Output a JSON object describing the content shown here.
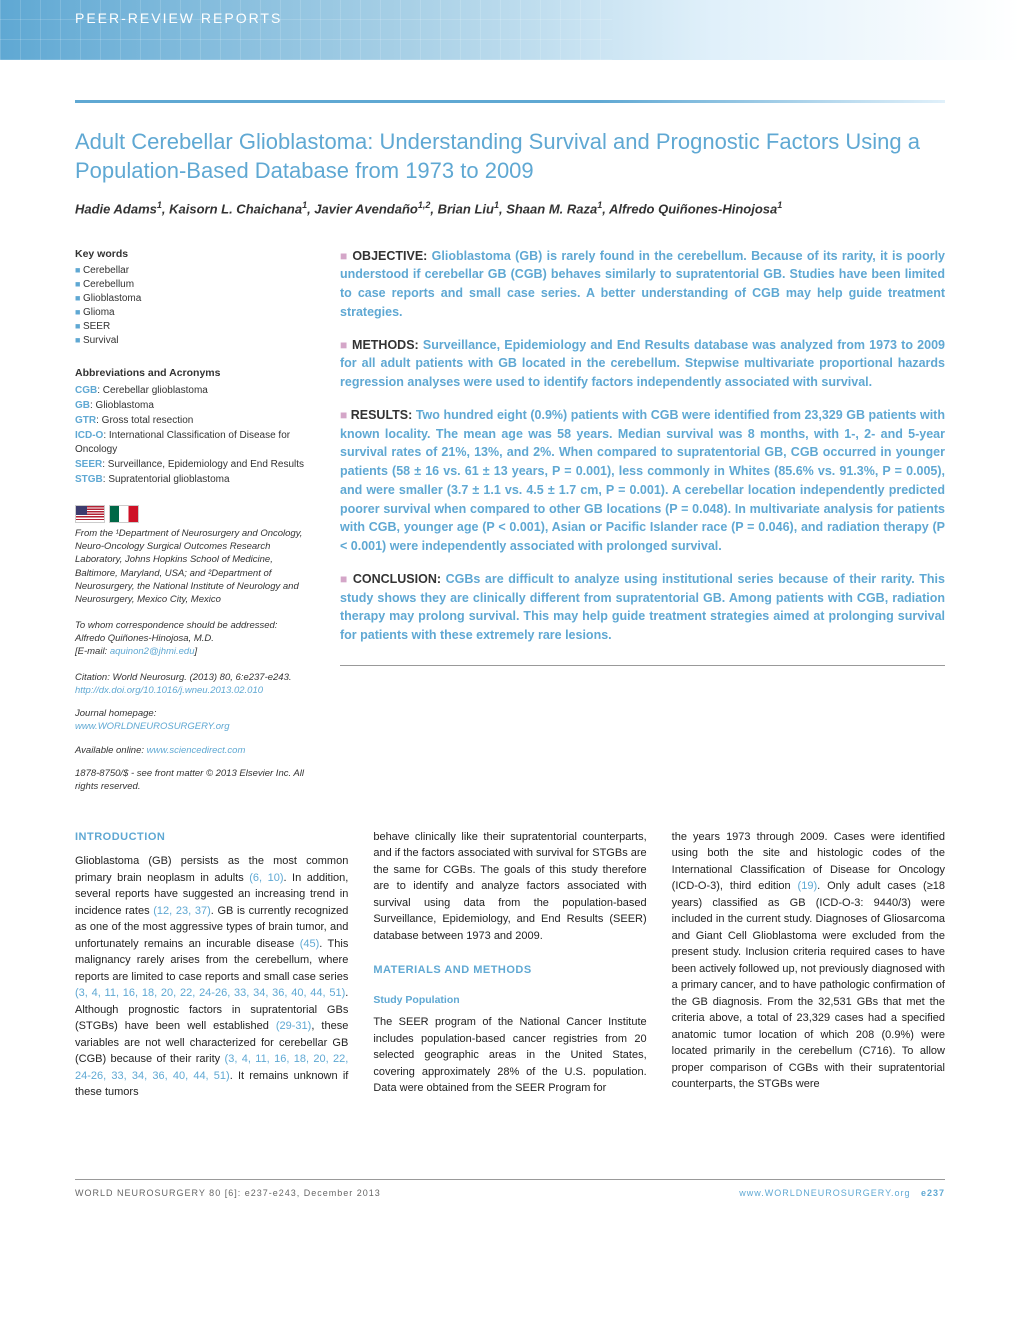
{
  "header": {
    "label": "Peer-Review Reports"
  },
  "title": "Adult Cerebellar Glioblastoma: Understanding Survival and Prognostic Factors Using a Population-Based Database from 1973 to 2009",
  "authors_html": "Hadie Adams<sup>1</sup>, Kaisorn L. Chaichana<sup>1</sup>, Javier Avendaño<sup>1,2</sup>, Brian Liu<sup>1</sup>, Shaan M. Raza<sup>1</sup>, Alfredo Quiñones-Hinojosa<sup>1</sup>",
  "keywords": [
    "Cerebellar",
    "Cerebellum",
    "Glioblastoma",
    "Glioma",
    "SEER",
    "Survival"
  ],
  "abbreviations": [
    {
      "abbr": "CGB",
      "desc": "Cerebellar glioblastoma"
    },
    {
      "abbr": "GB",
      "desc": "Glioblastoma"
    },
    {
      "abbr": "GTR",
      "desc": "Gross total resection"
    },
    {
      "abbr": "ICD-O",
      "desc": "International Classification of Disease for Oncology"
    },
    {
      "abbr": "SEER",
      "desc": "Surveillance, Epidemiology and End Results"
    },
    {
      "abbr": "STGB",
      "desc": "Supratentorial glioblastoma"
    }
  ],
  "affiliation": "From the ¹Department of Neurosurgery and Oncology, Neuro-Oncology Surgical Outcomes Research Laboratory, Johns Hopkins School of Medicine, Baltimore, Maryland, USA; and ²Department of Neurosurgery, the National Institute of Neurology and Neurosurgery, Mexico City, Mexico",
  "correspondence": {
    "label": "To whom correspondence should be addressed:",
    "name": "Alfredo Quiñones-Hinojosa, M.D.",
    "email": "aquinon2@jhmi.edu"
  },
  "citation": {
    "text": "Citation: World Neurosurg. (2013) 80, 6:e237-e243.",
    "doi": "http://dx.doi.org/10.1016/j.wneu.2013.02.010"
  },
  "journal": {
    "homepage_label": "Journal homepage:",
    "homepage": "www.WORLDNEUROSURGERY.org",
    "online_label": "Available online:",
    "online": "www.sciencedirect.com"
  },
  "copyright": "1878-8750/$ - see front matter © 2013 Elsevier Inc. All rights reserved.",
  "abstract": {
    "objective": {
      "label": "OBJECTIVE:",
      "text": "Glioblastoma (GB) is rarely found in the cerebellum. Because of its rarity, it is poorly understood if cerebellar GB (CGB) behaves similarly to supratentorial GB. Studies have been limited to case reports and small case series. A better understanding of CGB may help guide treatment strategies."
    },
    "methods": {
      "label": "METHODS:",
      "text": "Surveillance, Epidemiology and End Results database was analyzed from 1973 to 2009 for all adult patients with GB located in the cerebellum. Stepwise multivariate proportional hazards regression analyses were used to identify factors independently associated with survival."
    },
    "results": {
      "label": "RESULTS:",
      "text": "Two hundred eight (0.9%) patients with CGB were identified from 23,329 GB patients with known locality. The mean age was 58 years. Median survival was 8 months, with 1-, 2- and 5-year survival rates of 21%, 13%, and 2%. When compared to supratentorial GB, CGB occurred in younger patients (58 ± 16 vs. 61 ± 13 years, P = 0.001), less commonly in Whites (85.6% vs. 91.3%, P = 0.005), and were smaller (3.7 ± 1.1 vs. 4.5 ± 1.7 cm, P = 0.001). A cerebellar location independently predicted poorer survival when compared to other GB locations (P = 0.048). In multivariate analysis for patients with CGB, younger age (P < 0.001), Asian or Pacific Islander race (P = 0.046), and radiation therapy (P < 0.001) were independently associated with prolonged survival."
    },
    "conclusion": {
      "label": "CONCLUSION:",
      "text": "CGBs are difficult to analyze using institutional series because of their rarity. This study shows they are clinically different from supratentorial GB. Among patients with CGB, radiation therapy may prolong survival. This may help guide treatment strategies aimed at prolonging survival for patients with these extremely rare lesions."
    }
  },
  "sections": {
    "intro_head": "INTRODUCTION",
    "intro_p1_a": "Glioblastoma (GB) persists as the most common primary brain neoplasm in adults ",
    "intro_ref1": "(6, 10)",
    "intro_p1_b": ". In addition, several reports have suggested an increasing trend in incidence rates ",
    "intro_ref2": "(12, 23, 37)",
    "intro_p1_c": ". GB is currently recognized as one of the most aggressive types of brain tumor, and unfortunately remains an incurable disease ",
    "intro_ref3": "(45)",
    "intro_p1_d": ". This malignancy rarely arises from the cerebellum, where reports are limited to case reports and small case series ",
    "intro_ref4": "(3, 4, 11, 16, 18, 20, 22, 24-26, 33, 34, 36, 40, 44, 51)",
    "intro_p1_e": ". Although prognostic factors in supratentorial GBs (STGBs) have been well established ",
    "intro_ref5": "(29-31)",
    "intro_p1_f": ", these variables are not well characterized for cerebellar GB (CGB) because of their rarity ",
    "intro_ref6": "(3, 4, 11, 16, 18, 20, 22, 24-26, 33, 34, 36, 40, 44, 51)",
    "intro_p1_g": ". It remains unknown if these tumors",
    "intro_p2": "behave clinically like their supratentorial counterparts, and if the factors associated with survival for STGBs are the same for CGBs. The goals of this study therefore are to identify and analyze factors associated with survival using data from the population-based Surveillance, Epidemiology, and End Results (SEER) database between 1973 and 2009.",
    "methods_head": "MATERIALS AND METHODS",
    "study_pop_head": "Study Population",
    "methods_p1_a": "The SEER program of the National Cancer Institute includes population-based cancer registries from 20 selected geographic areas in the United States, covering approximately 28% of the U.S. population. Data were obtained from the SEER Program for",
    "methods_p1_b": "the years 1973 through 2009. Cases were identified using both the site and histologic codes of the International Classification of Disease for Oncology (ICD-O-3), third edition ",
    "methods_ref1": "(19)",
    "methods_p1_c": ". Only adult cases (≥18 years) classified as GB (ICD-O-3: 9440/3) were included in the current study. Diagnoses of Gliosarcoma and Giant Cell Glioblastoma were excluded from the present study. Inclusion criteria required cases to have been actively followed up, not previously diagnosed with a primary cancer, and to have pathologic confirmation of the GB diagnosis. From the 32,531 GBs that met the criteria above, a total of 23,329 cases had a specified anatomic tumor location of which 208 (0.9%) were located primarily in the cerebellum (C716). To allow proper comparison of CGBs with their supratentorial counterparts, the STGBs were"
  },
  "footer": {
    "left": "WORLD NEUROSURGERY 80 [6]: e237-e243, December 2013",
    "url": "www.WORLDNEUROSURGERY.org",
    "page": "e237"
  },
  "colors": {
    "primary": "#5fa8d3",
    "marker": "#d4a6c8",
    "text": "#333333",
    "body": "#222222"
  }
}
